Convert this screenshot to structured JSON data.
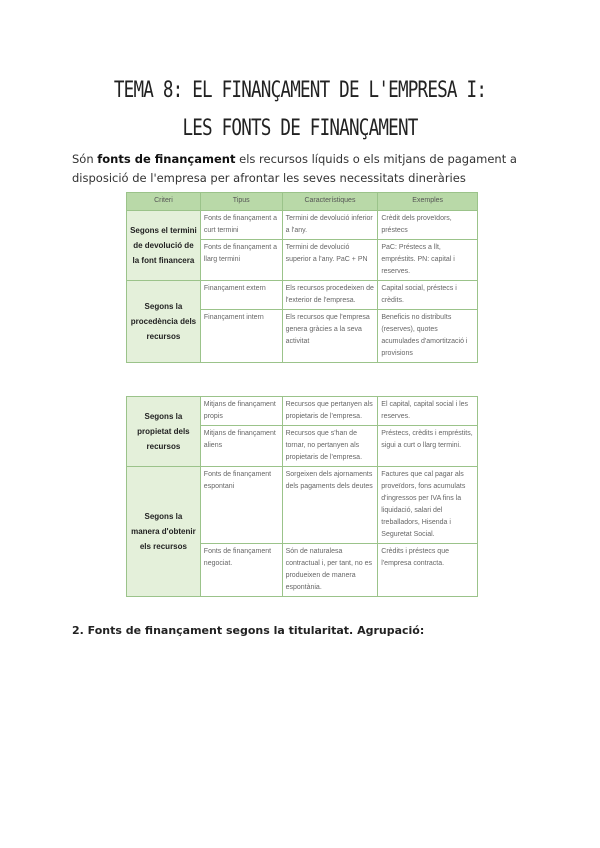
{
  "title": "TEMA 8: EL FINANÇAMENT DE L'EMPRESA I: LES FONTS DE FINANÇAMENT",
  "intro": {
    "pre": "Són ",
    "bold": "fonts de finançament",
    "post": " els recursos líquids o els mitjans de pagament a disposició de l'empresa per afrontar les seves necessitats dineràries"
  },
  "table": {
    "headers": [
      "Criteri",
      "Tipus",
      "Característiques",
      "Exemples"
    ],
    "groups1": [
      {
        "criteri": "Segons el termini de devolució de la font financera",
        "rows": [
          [
            "Fonts de finançament a curt termini",
            "Termini de devolució inferior a l'any.",
            "Crèdit dels proveïdors, préstecs"
          ],
          [
            "Fonts de finançament a llarg termini",
            "Termini de devolució superior a l'any. PaC + PN",
            "PaC: Préstecs a llt, empréstits. PN: capital i reserves."
          ]
        ]
      },
      {
        "criteri": "Segons la procedència dels recursos",
        "rows": [
          [
            "Finançament extern",
            "Els recursos procedeixen de l'exterior de l'empresa.",
            "Capital social, préstecs i crèdits."
          ],
          [
            "Finançament intern",
            "Els recursos que l'empresa genera gràcies a la seva activitat",
            "Beneficis no distribuïts (reserves), quotes acumulades d'amortització i provisions"
          ]
        ]
      }
    ],
    "groups2": [
      {
        "criteri": "Segons la propietat dels recursos",
        "rows": [
          [
            "Mitjans de finançament propis",
            "Recursos que pertanyen als propietaris de l'empresa.",
            "El capital, capital social i les reserves."
          ],
          [
            "Mitjans de finançament aliens",
            "Recursos que s'han de tornar, no pertanyen als propietaris de l'empresa.",
            "Préstecs, crèdits i empréstits, sigui a curt o llarg termini."
          ]
        ]
      },
      {
        "criteri": "Segons la manera d'obtenir els recursos",
        "rows": [
          [
            "Fonts de finançament espontani",
            "Sorgeixen dels ajornaments dels pagaments dels deutes",
            "Factures que cal pagar als proveïdors, fons acumulats d'ingressos per IVA fins la liquidació, salari del treballadors, Hisenda i Seguretat Social."
          ],
          [
            "Fonts de finançament negociat.",
            "Són de naturalesa contractual i, per tant, no es produeixen de manera espontània.",
            "Crèdits i préstecs que l'empresa contracta."
          ]
        ]
      }
    ]
  },
  "heading2": "2. Fonts de finançament segons la titularitat. Agrupació:"
}
